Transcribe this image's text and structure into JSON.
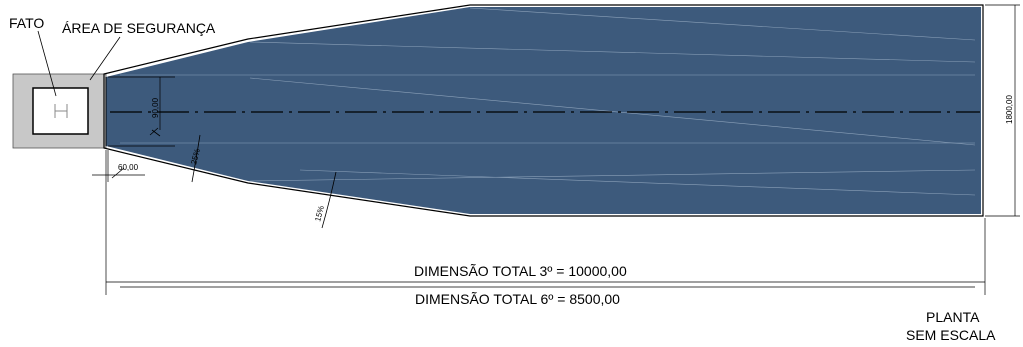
{
  "labels": {
    "fato": "FATO",
    "safety_area": "ÁREA DE SEGURANÇA",
    "total_3": "DIMENSÃO TOTAL 3º = 10000,00",
    "total_6": "DIMENSÃO TOTAL 6º = 8500,00",
    "view_line1": "PLANTA",
    "view_line2": "SEM ESCALA"
  },
  "dimensions": {
    "width_right": "1800,00",
    "fato_offset": "90,00",
    "inner_offset": "60,00",
    "slope_25": "25%",
    "slope_15": "15%"
  },
  "colors": {
    "surface_fill": "#3d5a7c",
    "safety_area_fill": "#c8c8c8",
    "line": "#000000"
  },
  "icons": {
    "fato_marker": "H-marker-icon"
  }
}
